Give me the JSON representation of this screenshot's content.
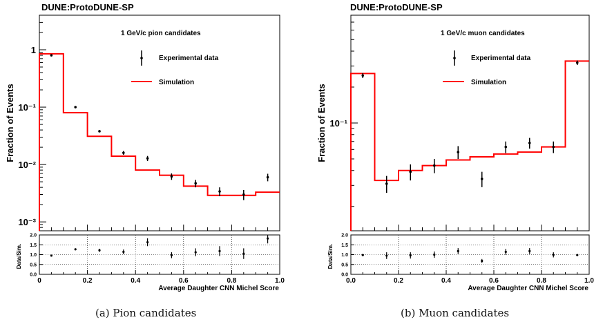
{
  "colors": {
    "data": "#000000",
    "simulation": "#ff0000"
  },
  "captions": [
    "(a) Pion candidates",
    "(b) Muon candidates"
  ],
  "chart_data": [
    {
      "type": "step+errorbar",
      "title": "DUNE:ProtoDUNE-SP",
      "annotation": "1 GeV/c pion candidates",
      "xlabel": "Average Daughter CNN Michel Score",
      "ylabel": "Fraction of Events",
      "ratio_ylabel": "Data/Sim.",
      "legend": {
        "placement": "top-right",
        "entries": [
          "Experimental data",
          "Simulation"
        ]
      },
      "xlim": [
        0,
        1
      ],
      "ylim": [
        0.0007,
        4
      ],
      "yscale": "log",
      "x_ticks": [
        "0",
        "0.2",
        "0.4",
        "0.6",
        "0.8",
        "1.0"
      ],
      "y_ticks": [
        "10⁻³",
        "10⁻²",
        "10⁻¹",
        "1"
      ],
      "ratio_ylim": [
        0,
        2
      ],
      "ratio_ticks": [
        "0.0",
        "0.5",
        "1.0",
        "1.5",
        "2.0"
      ],
      "bin_edges": [
        0,
        0.1,
        0.2,
        0.3,
        0.4,
        0.5,
        0.6,
        0.7,
        0.8,
        0.9,
        1.0
      ],
      "series": [
        {
          "name": "Experimental data",
          "x": [
            0.05,
            0.15,
            0.25,
            0.35,
            0.45,
            0.55,
            0.65,
            0.75,
            0.85,
            0.95
          ],
          "y": [
            0.8,
            0.1,
            0.038,
            0.016,
            0.0128,
            0.0062,
            0.0047,
            0.0034,
            0.003,
            0.006
          ],
          "yerr": [
            0.02,
            0.003,
            0.0015,
            0.0012,
            0.0013,
            0.0008,
            0.0007,
            0.0006,
            0.0006,
            0.0009
          ]
        },
        {
          "name": "Simulation",
          "values": [
            0.85,
            0.08,
            0.031,
            0.014,
            0.008,
            0.0065,
            0.0042,
            0.0029,
            0.0029,
            0.0033
          ]
        }
      ],
      "ratio": {
        "y": [
          0.95,
          1.27,
          1.22,
          1.14,
          1.63,
          0.97,
          1.12,
          1.18,
          1.05,
          1.82
        ],
        "yerr": [
          0.04,
          0.05,
          0.08,
          0.12,
          0.2,
          0.15,
          0.2,
          0.25,
          0.27,
          0.25
        ]
      }
    },
    {
      "type": "step+errorbar",
      "title": "DUNE:ProtoDUNE-SP",
      "annotation": "1 GeV/c muon candidates",
      "xlabel": "Average Daughter CNN Michel Score",
      "ylabel": "Fraction of Events",
      "ratio_ylabel": "Data/Sim.",
      "legend": {
        "placement": "top-right",
        "entries": [
          "Experimental data",
          "Simulation"
        ]
      },
      "xlim": [
        0,
        1
      ],
      "ylim": [
        0.0125,
        0.8
      ],
      "yscale": "log",
      "x_ticks": [
        "0.0",
        "0.2",
        "0.4",
        "0.6",
        "0.8",
        "1.0"
      ],
      "y_ticks": [
        "10⁻¹"
      ],
      "ratio_ylim": [
        0,
        2
      ],
      "ratio_ticks": [
        "0.0",
        "0.5",
        "1.0",
        "1.5",
        "2.0"
      ],
      "bin_edges": [
        0,
        0.1,
        0.2,
        0.3,
        0.4,
        0.5,
        0.6,
        0.7,
        0.8,
        0.9,
        1.0
      ],
      "series": [
        {
          "name": "Experimental data",
          "x": [
            0.05,
            0.15,
            0.25,
            0.35,
            0.45,
            0.55,
            0.65,
            0.75,
            0.85,
            0.95
          ],
          "y": [
            0.25,
            0.031,
            0.039,
            0.044,
            0.057,
            0.034,
            0.063,
            0.068,
            0.063,
            0.32
          ],
          "yerr": [
            0.012,
            0.005,
            0.006,
            0.006,
            0.007,
            0.005,
            0.007,
            0.007,
            0.007,
            0.014
          ]
        },
        {
          "name": "Simulation",
          "values": [
            0.26,
            0.033,
            0.04,
            0.044,
            0.049,
            0.052,
            0.055,
            0.057,
            0.063,
            0.33
          ]
        }
      ],
      "ratio": {
        "y": [
          0.98,
          0.95,
          0.96,
          1.0,
          1.18,
          0.68,
          1.14,
          1.18,
          0.99,
          0.98
        ],
        "yerr": [
          0.04,
          0.17,
          0.16,
          0.16,
          0.15,
          0.1,
          0.15,
          0.15,
          0.13,
          0.04
        ]
      }
    }
  ]
}
